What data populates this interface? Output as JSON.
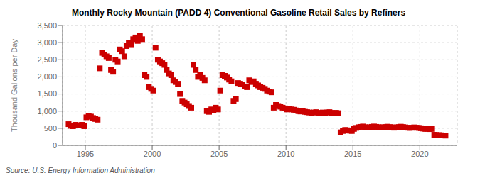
{
  "chart_data": {
    "type": "scatter",
    "title": "Monthly Rocky Mountain (PADD 4) Conventional Gasoline Retail Sales by Refiners",
    "y_label": "Thousand Gallons per Day",
    "annotations": [
      "Source: U.S. Energy Information Administration"
    ],
    "color": "#cc0000",
    "marker": "square",
    "grid": true,
    "xlim": [
      1993.3,
      2022.8
    ],
    "xticks": [
      1995,
      2000,
      2005,
      2010,
      2015,
      2020
    ],
    "ylim": [
      0,
      3500
    ],
    "yticks": [
      0,
      500,
      {
        "value": 1000,
        "label": "1,000"
      },
      {
        "value": 1500,
        "label": "1,500"
      },
      {
        "value": 2000,
        "label": "2,000"
      },
      {
        "value": 2500,
        "label": "2,500"
      },
      {
        "value": 3000,
        "label": "3,000"
      },
      {
        "value": 3500,
        "label": "3,500"
      }
    ],
    "x": [
      1993.75,
      1993.92,
      1994.08,
      1994.25,
      1994.42,
      1994.58,
      1994.75,
      1994.92,
      1995.08,
      1995.25,
      1995.42,
      1995.58,
      1995.75,
      1995.92,
      1996.08,
      1996.25,
      1996.42,
      1996.58,
      1996.75,
      1996.92,
      1997.08,
      1997.25,
      1997.42,
      1997.58,
      1997.75,
      1997.92,
      1998.08,
      1998.25,
      1998.42,
      1998.58,
      1998.75,
      1998.92,
      1999.08,
      1999.25,
      1999.42,
      1999.58,
      1999.75,
      1999.92,
      2000.08,
      2000.25,
      2000.42,
      2000.58,
      2000.75,
      2000.92,
      2001.08,
      2001.25,
      2001.42,
      2001.58,
      2001.75,
      2001.92,
      2002.08,
      2002.25,
      2002.42,
      2002.58,
      2002.75,
      2002.92,
      2003.08,
      2003.25,
      2003.42,
      2003.58,
      2003.75,
      2003.92,
      2004.08,
      2004.25,
      2004.42,
      2004.58,
      2004.75,
      2004.92,
      2005.08,
      2005.25,
      2005.42,
      2005.58,
      2005.75,
      2005.92,
      2006.08,
      2006.25,
      2006.42,
      2006.58,
      2006.75,
      2006.92,
      2007.08,
      2007.25,
      2007.42,
      2007.58,
      2007.75,
      2007.92,
      2008.08,
      2008.25,
      2008.42,
      2008.58,
      2008.75,
      2008.92,
      2009.08,
      2009.25,
      2009.42,
      2009.58,
      2009.75,
      2009.92,
      2010.08,
      2010.25,
      2010.42,
      2010.58,
      2010.75,
      2010.92,
      2011.08,
      2011.25,
      2011.42,
      2011.58,
      2011.75,
      2011.92,
      2012.08,
      2012.25,
      2012.42,
      2012.58,
      2012.75,
      2012.92,
      2013.08,
      2013.25,
      2013.42,
      2013.58,
      2013.75,
      2013.92,
      2014.08,
      2014.25,
      2014.42,
      2014.58,
      2014.75,
      2014.92,
      2015.08,
      2015.25,
      2015.42,
      2015.58,
      2015.75,
      2015.92,
      2016.08,
      2016.25,
      2016.42,
      2016.58,
      2016.75,
      2016.92,
      2017.08,
      2017.25,
      2017.42,
      2017.58,
      2017.75,
      2017.92,
      2018.08,
      2018.25,
      2018.42,
      2018.58,
      2018.75,
      2018.92,
      2019.08,
      2019.25,
      2019.42,
      2019.58,
      2019.75,
      2019.92,
      2020.08,
      2020.25,
      2020.42,
      2020.58,
      2020.75,
      2020.92,
      2021.08,
      2021.25,
      2021.42,
      2021.58,
      2021.75,
      2021.92
    ],
    "values": [
      620,
      570,
      560,
      600,
      580,
      590,
      600,
      560,
      820,
      860,
      840,
      800,
      770,
      750,
      2250,
      2700,
      2650,
      2600,
      2550,
      2200,
      2150,
      2500,
      2450,
      2800,
      2750,
      2600,
      2900,
      3000,
      2950,
      3100,
      3150,
      3050,
      3200,
      3100,
      2050,
      2000,
      1700,
      1650,
      1600,
      2850,
      2500,
      2450,
      2400,
      2350,
      2200,
      2100,
      2050,
      1900,
      1850,
      1800,
      1500,
      1300,
      1250,
      1200,
      1150,
      1100,
      2350,
      2200,
      2000,
      2050,
      1970,
      1900,
      1000,
      980,
      1050,
      1020,
      1100,
      1050,
      1600,
      2050,
      2030,
      1980,
      1920,
      1870,
      1300,
      1350,
      1820,
      1800,
      1780,
      1720,
      1700,
      1900,
      1850,
      1870,
      1800,
      1750,
      1700,
      1680,
      1650,
      1600,
      1570,
      1550,
      1100,
      1180,
      1150,
      1130,
      1100,
      1080,
      1050,
      1070,
      1050,
      1040,
      1020,
      1000,
      990,
      1010,
      980,
      970,
      960,
      950,
      960,
      970,
      950,
      940,
      960,
      950,
      960,
      970,
      950,
      940,
      950,
      940,
      380,
      420,
      450,
      440,
      430,
      420,
      480,
      510,
      530,
      540,
      550,
      530,
      520,
      530,
      540,
      550,
      540,
      530,
      520,
      530,
      535,
      545,
      535,
      525,
      515,
      525,
      535,
      545,
      535,
      525,
      515,
      510,
      515,
      525,
      515,
      510,
      500,
      490,
      480,
      485,
      475,
      480,
      310,
      305,
      300,
      295,
      290,
      285
    ]
  }
}
